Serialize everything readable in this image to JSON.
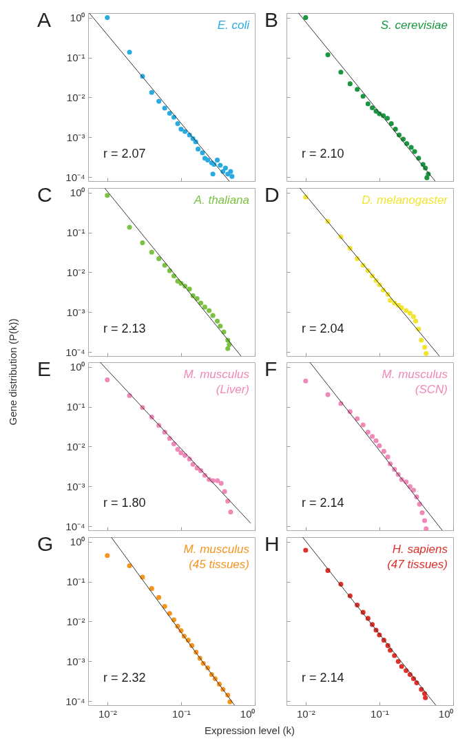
{
  "chart_data": [
    {
      "type": "scatter",
      "log": "xy",
      "tick_labels": "y",
      "annotations": [
        "A",
        "E. coli",
        "r = 2.07"
      ],
      "xlim": [
        0.0055,
        1
      ],
      "ylim": [
        8e-05,
        1.3
      ],
      "xticks": [
        0.01,
        0.1,
        1
      ],
      "yticks": [
        {
          "value": 1,
          "label": "10⁰"
        },
        {
          "value": 0.1,
          "label": "10⁻¹"
        },
        {
          "value": 0.01,
          "label": "10⁻²"
        },
        {
          "value": 0.001,
          "label": "10⁻³"
        },
        {
          "value": 0.0001,
          "label": "10⁻⁴"
        }
      ],
      "series": [
        {
          "marker": "circle",
          "color": "#29abe2",
          "x": [
            0.01,
            0.02,
            0.03,
            0.04,
            0.05,
            0.06,
            0.07,
            0.08,
            0.09,
            0.1,
            0.113,
            0.13,
            0.145,
            0.158,
            0.17,
            0.195,
            0.21,
            0.23,
            0.26,
            0.27,
            0.28,
            0.31,
            0.34,
            0.37,
            0.4,
            0.43,
            0.47,
            0.49
          ],
          "values": [
            1.0,
            0.136,
            0.034,
            0.0133,
            0.008,
            0.0054,
            0.004,
            0.0032,
            0.0022,
            0.0016,
            0.0014,
            0.00115,
            0.00093,
            0.00077,
            0.00051,
            0.00041,
            0.0003,
            0.00027,
            0.00023,
            0.00012,
            0.00021,
            0.00027,
            0.0002,
            0.00014,
            0.00017,
            0.00012,
            0.00014,
            0.000105
          ]
        },
        {
          "type": "line",
          "color": "#333333",
          "x": [
            0.0057,
            0.45
          ],
          "values": [
            1.3,
            8e-05
          ]
        }
      ]
    },
    {
      "type": "scatter",
      "log": "xy",
      "tick_labels": false,
      "annotations": [
        "B",
        "S. cerevisiae",
        "r = 2.10"
      ],
      "xlim": [
        0.0055,
        1
      ],
      "ylim": [
        8e-05,
        1.3
      ],
      "xticks": [
        0.01,
        0.1,
        1
      ],
      "yticks": [
        1,
        0.1,
        0.01,
        0.001,
        0.0001
      ],
      "series": [
        {
          "marker": "circle",
          "color": "#1a9641",
          "x": [
            0.01,
            0.02,
            0.03,
            0.04,
            0.05,
            0.06,
            0.07,
            0.08,
            0.09,
            0.1,
            0.113,
            0.128,
            0.145,
            0.165,
            0.185,
            0.21,
            0.235,
            0.27,
            0.3,
            0.34,
            0.39,
            0.42,
            0.46,
            0.44
          ],
          "values": [
            1.0,
            0.117,
            0.043,
            0.022,
            0.016,
            0.0107,
            0.0069,
            0.0055,
            0.0045,
            0.0039,
            0.0035,
            0.003,
            0.0022,
            0.0016,
            0.00115,
            0.0009,
            0.0007,
            0.00056,
            0.00044,
            0.0003,
            0.00021,
            0.00017,
            0.00012,
            9.7e-05
          ]
        },
        {
          "type": "line",
          "color": "#333333",
          "x": [
            0.008,
            0.57
          ],
          "values": [
            1.3,
            8e-05
          ]
        }
      ]
    },
    {
      "type": "scatter",
      "log": "xy",
      "tick_labels": "y",
      "annotations": [
        "C",
        "A. thaliana",
        "r = 2.13"
      ],
      "xlim": [
        0.0055,
        1
      ],
      "ylim": [
        8e-05,
        1.3
      ],
      "xticks": [
        0.01,
        0.1,
        1
      ],
      "yticks": [
        {
          "value": 1,
          "label": "10⁰"
        },
        {
          "value": 0.1,
          "label": "10⁻¹"
        },
        {
          "value": 0.01,
          "label": "10⁻²"
        },
        {
          "value": 0.001,
          "label": "10⁻³"
        },
        {
          "value": 0.0001,
          "label": "10⁻⁴"
        }
      ],
      "series": [
        {
          "marker": "circle",
          "color": "#7cc242",
          "x": [
            0.01,
            0.02,
            0.03,
            0.04,
            0.05,
            0.06,
            0.07,
            0.08,
            0.09,
            0.1,
            0.113,
            0.13,
            0.145,
            0.165,
            0.185,
            0.21,
            0.24,
            0.27,
            0.31,
            0.34,
            0.38,
            0.43,
            0.45,
            0.43
          ],
          "values": [
            0.85,
            0.135,
            0.055,
            0.032,
            0.022,
            0.015,
            0.011,
            0.0081,
            0.006,
            0.0053,
            0.0045,
            0.0038,
            0.0026,
            0.0022,
            0.0017,
            0.00135,
            0.0011,
            0.00083,
            0.0006,
            0.00045,
            0.00032,
            0.0002,
            0.000155,
            0.000123
          ]
        },
        {
          "type": "line",
          "color": "#333333",
          "x": [
            0.0092,
            0.65
          ],
          "values": [
            1.3,
            8e-05
          ]
        }
      ]
    },
    {
      "type": "scatter",
      "log": "xy",
      "tick_labels": false,
      "annotations": [
        "D",
        "D. melanogaster",
        "r = 2.04"
      ],
      "xlim": [
        0.0055,
        1
      ],
      "ylim": [
        8e-05,
        1.3
      ],
      "xticks": [
        0.01,
        0.1,
        1
      ],
      "yticks": [
        1,
        0.1,
        0.01,
        0.001,
        0.0001
      ],
      "series": [
        {
          "marker": "circle",
          "color": "#f2e530",
          "x": [
            0.01,
            0.02,
            0.03,
            0.04,
            0.05,
            0.06,
            0.07,
            0.08,
            0.09,
            0.1,
            0.113,
            0.13,
            0.14,
            0.16,
            0.18,
            0.2,
            0.23,
            0.26,
            0.29,
            0.31,
            0.34,
            0.37,
            0.41,
            0.43
          ],
          "values": [
            0.77,
            0.19,
            0.078,
            0.04,
            0.022,
            0.015,
            0.011,
            0.0081,
            0.0062,
            0.0049,
            0.0036,
            0.0028,
            0.002,
            0.0017,
            0.0015,
            0.0013,
            0.0011,
            0.00095,
            0.00078,
            0.0006,
            0.00038,
            0.0002,
            0.000133,
            9.3e-05
          ]
        },
        {
          "type": "line",
          "color": "#333333",
          "x": [
            0.0083,
            0.65
          ],
          "values": [
            1.3,
            8e-05
          ]
        }
      ]
    },
    {
      "type": "scatter",
      "log": "xy",
      "tick_labels": "y",
      "ylabel": "Gene distribution (P(k))",
      "annotations": [
        "E",
        "M. musculus\n(Liver)",
        "r = 1.80"
      ],
      "xlim": [
        0.0055,
        1
      ],
      "ylim": [
        8e-05,
        1.3
      ],
      "xticks": [
        0.01,
        0.1,
        1
      ],
      "yticks": [
        {
          "value": 1,
          "label": "10⁰"
        },
        {
          "value": 0.1,
          "label": "10⁻¹"
        },
        {
          "value": 0.01,
          "label": "10⁻²"
        },
        {
          "value": 0.001,
          "label": "10⁻³"
        },
        {
          "value": 0.0001,
          "label": "10⁻⁴"
        }
      ],
      "series": [
        {
          "marker": "circle",
          "color": "#f088b8",
          "x": [
            0.01,
            0.02,
            0.03,
            0.04,
            0.05,
            0.06,
            0.07,
            0.08,
            0.09,
            0.1,
            0.113,
            0.13,
            0.145,
            0.165,
            0.185,
            0.21,
            0.24,
            0.27,
            0.31,
            0.35,
            0.39,
            0.43,
            0.47
          ],
          "values": [
            0.47,
            0.19,
            0.095,
            0.055,
            0.034,
            0.023,
            0.016,
            0.0117,
            0.0085,
            0.007,
            0.006,
            0.0049,
            0.0036,
            0.0029,
            0.0025,
            0.0019,
            0.0015,
            0.0014,
            0.0014,
            0.0012,
            0.00075,
            0.00043,
            0.00023
          ]
        },
        {
          "type": "line",
          "color": "#333333",
          "x": [
            0.008,
            0.88
          ],
          "values": [
            1.3,
            0.00012
          ]
        }
      ]
    },
    {
      "type": "scatter",
      "log": "xy",
      "tick_labels": false,
      "annotations": [
        "F",
        "M. musculus\n(SCN)",
        "r = 2.14"
      ],
      "xlim": [
        0.0055,
        1
      ],
      "ylim": [
        8e-05,
        1.3
      ],
      "xticks": [
        0.01,
        0.1,
        1
      ],
      "yticks": [
        1,
        0.1,
        0.01,
        0.001,
        0.0001
      ],
      "series": [
        {
          "marker": "circle",
          "color": "#f088b8",
          "x": [
            0.01,
            0.02,
            0.03,
            0.04,
            0.05,
            0.06,
            0.07,
            0.08,
            0.09,
            0.1,
            0.115,
            0.13,
            0.14,
            0.16,
            0.18,
            0.2,
            0.23,
            0.26,
            0.29,
            0.32,
            0.35,
            0.38,
            0.41,
            0.43
          ],
          "values": [
            0.44,
            0.2,
            0.12,
            0.075,
            0.05,
            0.035,
            0.023,
            0.018,
            0.014,
            0.0105,
            0.0076,
            0.0055,
            0.0037,
            0.0027,
            0.002,
            0.0015,
            0.0013,
            0.001,
            0.00081,
            0.00055,
            0.00036,
            0.00022,
            0.00014,
            8.7e-05
          ]
        },
        {
          "type": "line",
          "color": "#333333",
          "x": [
            0.0114,
            0.71
          ],
          "values": [
            1.3,
            8e-05
          ]
        }
      ]
    },
    {
      "type": "scatter",
      "log": "xy",
      "xlabel": "Expression level (k)",
      "annotations": [
        "G",
        "M. musculus\n(45 tissues)",
        "r = 2.32"
      ],
      "xlim": [
        0.0055,
        1
      ],
      "ylim": [
        8e-05,
        1.3
      ],
      "xticks": [
        {
          "value": 0.01,
          "label": "10⁻²"
        },
        {
          "value": 0.1,
          "label": "10⁻¹"
        },
        {
          "value": 1,
          "label": "10⁰"
        }
      ],
      "yticks": [
        {
          "value": 1,
          "label": "10⁰"
        },
        {
          "value": 0.1,
          "label": "10⁻¹"
        },
        {
          "value": 0.01,
          "label": "10⁻²"
        },
        {
          "value": 0.001,
          "label": "10⁻³"
        },
        {
          "value": 0.0001,
          "label": "10⁻⁴"
        }
      ],
      "series": [
        {
          "marker": "circle",
          "color": "#f7941d",
          "x": [
            0.01,
            0.02,
            0.03,
            0.04,
            0.05,
            0.06,
            0.07,
            0.08,
            0.09,
            0.1,
            0.11,
            0.125,
            0.14,
            0.16,
            0.18,
            0.2,
            0.23,
            0.26,
            0.29,
            0.33,
            0.37,
            0.43,
            0.46
          ],
          "values": [
            0.45,
            0.25,
            0.13,
            0.067,
            0.04,
            0.024,
            0.016,
            0.011,
            0.0076,
            0.0059,
            0.0043,
            0.0034,
            0.0025,
            0.0017,
            0.0012,
            0.00089,
            0.00069,
            0.00047,
            0.00037,
            0.00027,
            0.0002,
            0.000144,
            9.7e-05
          ]
        },
        {
          "type": "line",
          "color": "#333333",
          "x": [
            0.0113,
            0.53
          ],
          "values": [
            1.3,
            8e-05
          ]
        }
      ]
    },
    {
      "type": "scatter",
      "log": "xy",
      "tick_labels": "x",
      "annotations": [
        "H",
        "H. sapiens\n(47 tissues)",
        "r = 2.14"
      ],
      "xlim": [
        0.0055,
        1
      ],
      "ylim": [
        8e-05,
        1.3
      ],
      "xticks": [
        {
          "value": 0.01,
          "label": "10⁻²"
        },
        {
          "value": 0.1,
          "label": "10⁻¹"
        },
        {
          "value": 1,
          "label": "10⁰"
        }
      ],
      "yticks": [
        1,
        0.1,
        0.01,
        0.001,
        0.0001
      ],
      "series": [
        {
          "marker": "circle",
          "color": "#e0302a",
          "x": [
            0.01,
            0.02,
            0.03,
            0.04,
            0.05,
            0.06,
            0.07,
            0.08,
            0.09,
            0.1,
            0.115,
            0.13,
            0.14,
            0.16,
            0.18,
            0.2,
            0.23,
            0.26,
            0.29,
            0.32,
            0.37,
            0.41,
            0.42
          ],
          "values": [
            0.61,
            0.19,
            0.086,
            0.044,
            0.026,
            0.017,
            0.012,
            0.0084,
            0.0061,
            0.0046,
            0.0034,
            0.0025,
            0.0019,
            0.0014,
            0.001,
            0.00075,
            0.00059,
            0.00047,
            0.00037,
            0.00029,
            0.0002,
            0.000155,
            0.000123
          ]
        },
        {
          "type": "line",
          "color": "#333333",
          "x": [
            0.0091,
            0.58
          ],
          "values": [
            1.3,
            8e-05
          ]
        }
      ]
    }
  ]
}
